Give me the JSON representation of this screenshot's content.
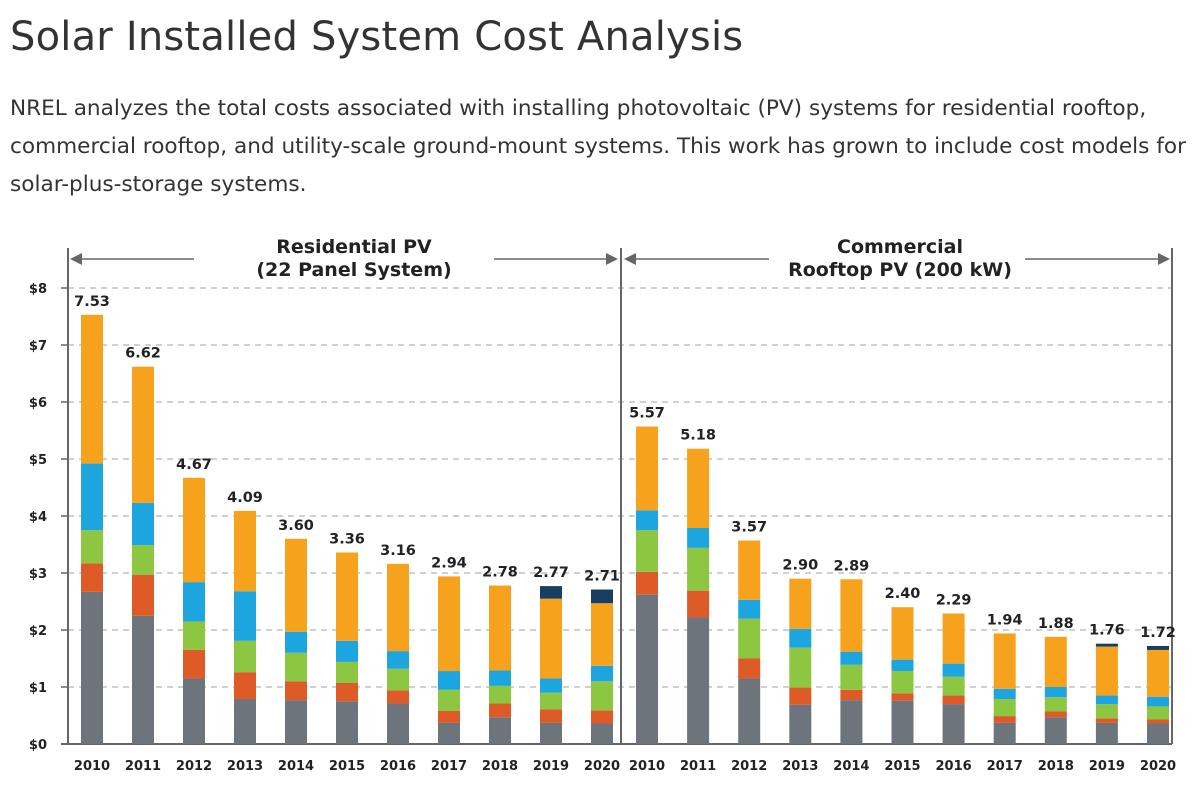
{
  "page": {
    "title": "Solar Installed System Cost Analysis",
    "intro": "NREL analyzes the total costs associated with installing photovoltaic (PV) systems for residential rooftop, commercial rooftop, and utility-scale ground-mount systems. This work has grown to include cost models for solar-plus-storage systems."
  },
  "colors": {
    "gray": "#6d747b",
    "red": "#de5a27",
    "green": "#8dc641",
    "blue": "#1da5df",
    "orange": "#f7a21c",
    "navy": "#183e61",
    "axis": "#666666",
    "grid": "#b5b5b5"
  },
  "chart_data": [
    {
      "type": "bar",
      "stacked": true,
      "title_lines": [
        "Residential PV",
        "(22 Panel System)"
      ],
      "categories": [
        "2010",
        "2011",
        "2012",
        "2013",
        "2014",
        "2015",
        "2016",
        "2017",
        "2018",
        "2019",
        "2020"
      ],
      "ytick_labels": [
        "$0",
        "$1",
        "$2",
        "$3",
        "$4",
        "$5",
        "$6",
        "$7",
        "$8"
      ],
      "ylim": [
        0,
        8
      ],
      "grid": "dashed horizontal",
      "totals": [
        "7.53",
        "6.62",
        "4.67",
        "4.09",
        "3.60",
        "3.36",
        "3.16",
        "2.94",
        "2.78",
        "2.77",
        "2.71"
      ],
      "segments": [
        {
          "color": "gray",
          "values": [
            2.67,
            2.25,
            1.15,
            0.79,
            0.77,
            0.75,
            0.71,
            0.37,
            0.47,
            0.37,
            0.36
          ]
        },
        {
          "color": "red",
          "values": [
            0.5,
            0.72,
            0.5,
            0.47,
            0.33,
            0.32,
            0.23,
            0.21,
            0.24,
            0.24,
            0.23
          ]
        },
        {
          "color": "green",
          "values": [
            0.58,
            0.52,
            0.5,
            0.55,
            0.5,
            0.37,
            0.38,
            0.37,
            0.31,
            0.29,
            0.51
          ]
        },
        {
          "color": "blue",
          "values": [
            1.17,
            0.74,
            0.69,
            0.87,
            0.37,
            0.37,
            0.31,
            0.33,
            0.27,
            0.25,
            0.27
          ]
        },
        {
          "color": "orange",
          "values": [
            2.61,
            2.39,
            1.83,
            1.41,
            1.63,
            1.55,
            1.53,
            1.66,
            1.49,
            1.4,
            1.1
          ]
        },
        {
          "color": "navy",
          "values": [
            0,
            0,
            0,
            0,
            0,
            0,
            0,
            0,
            0,
            0.22,
            0.24
          ]
        }
      ]
    },
    {
      "type": "bar",
      "stacked": true,
      "title_lines": [
        "Commercial",
        "Rooftop PV (200 kW)"
      ],
      "categories": [
        "2010",
        "2011",
        "2012",
        "2013",
        "2014",
        "2015",
        "2016",
        "2017",
        "2018",
        "2019",
        "2020"
      ],
      "ylim": [
        0,
        8
      ],
      "grid": "dashed horizontal",
      "totals": [
        "5.57",
        "5.18",
        "3.57",
        "2.90",
        "2.89",
        "2.40",
        "2.29",
        "1.94",
        "1.88",
        "1.76",
        "1.72"
      ],
      "segments": [
        {
          "color": "gray",
          "values": [
            2.62,
            2.22,
            1.15,
            0.69,
            0.77,
            0.76,
            0.7,
            0.37,
            0.47,
            0.37,
            0.36
          ]
        },
        {
          "color": "red",
          "values": [
            0.4,
            0.47,
            0.35,
            0.3,
            0.18,
            0.13,
            0.15,
            0.12,
            0.1,
            0.08,
            0.07
          ]
        },
        {
          "color": "green",
          "values": [
            0.73,
            0.75,
            0.7,
            0.7,
            0.44,
            0.39,
            0.33,
            0.3,
            0.25,
            0.25,
            0.23
          ]
        },
        {
          "color": "blue",
          "values": [
            0.35,
            0.35,
            0.33,
            0.33,
            0.23,
            0.2,
            0.23,
            0.18,
            0.18,
            0.15,
            0.17
          ]
        },
        {
          "color": "orange",
          "values": [
            1.47,
            1.39,
            1.04,
            0.88,
            1.27,
            0.92,
            0.88,
            0.97,
            0.88,
            0.86,
            0.82
          ]
        },
        {
          "color": "navy",
          "values": [
            0,
            0,
            0,
            0,
            0,
            0,
            0,
            0,
            0,
            0.05,
            0.07
          ]
        }
      ]
    }
  ]
}
